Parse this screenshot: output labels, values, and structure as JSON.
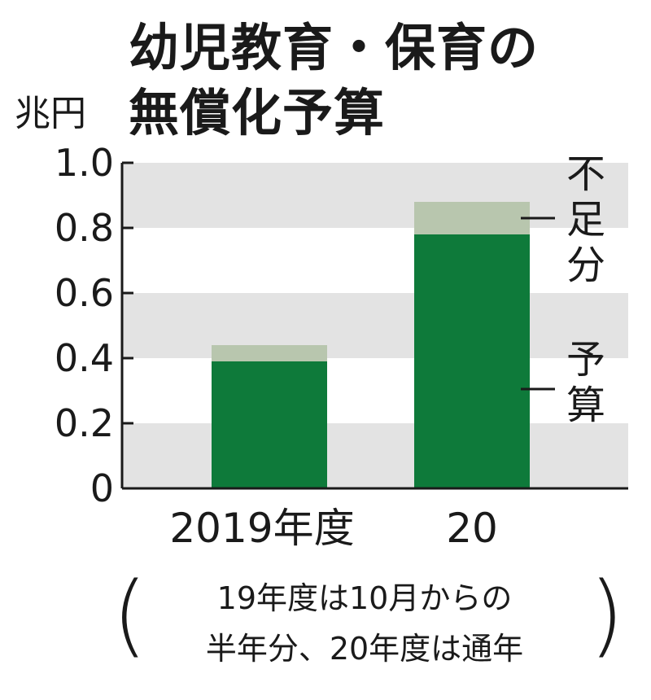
{
  "title_lines": [
    "幼児教育・保育の",
    "無償化予算"
  ],
  "unit_label": "兆円",
  "note_lines": [
    "19年度は10月からの",
    "半年分、20年度は通年"
  ],
  "colors": {
    "budget": "#0e7a3a",
    "shortfall": "#b8c6ae",
    "band": "#e3e3e3",
    "axis": "#1a1a1a"
  },
  "chart_data": {
    "type": "bar",
    "stacked": true,
    "categories": [
      "2019年度",
      "20"
    ],
    "series": [
      {
        "name": "予算",
        "values": [
          0.39,
          0.78
        ]
      },
      {
        "name": "不足分",
        "values": [
          0.05,
          0.1
        ]
      }
    ],
    "y_ticks": [
      "0",
      "0.2",
      "0.4",
      "0.6",
      "0.8",
      "1.0"
    ],
    "ylim": [
      0,
      1.0
    ],
    "ylabel": "兆円",
    "grid": "alternating bands",
    "legend_placement": "right (line callouts)"
  }
}
